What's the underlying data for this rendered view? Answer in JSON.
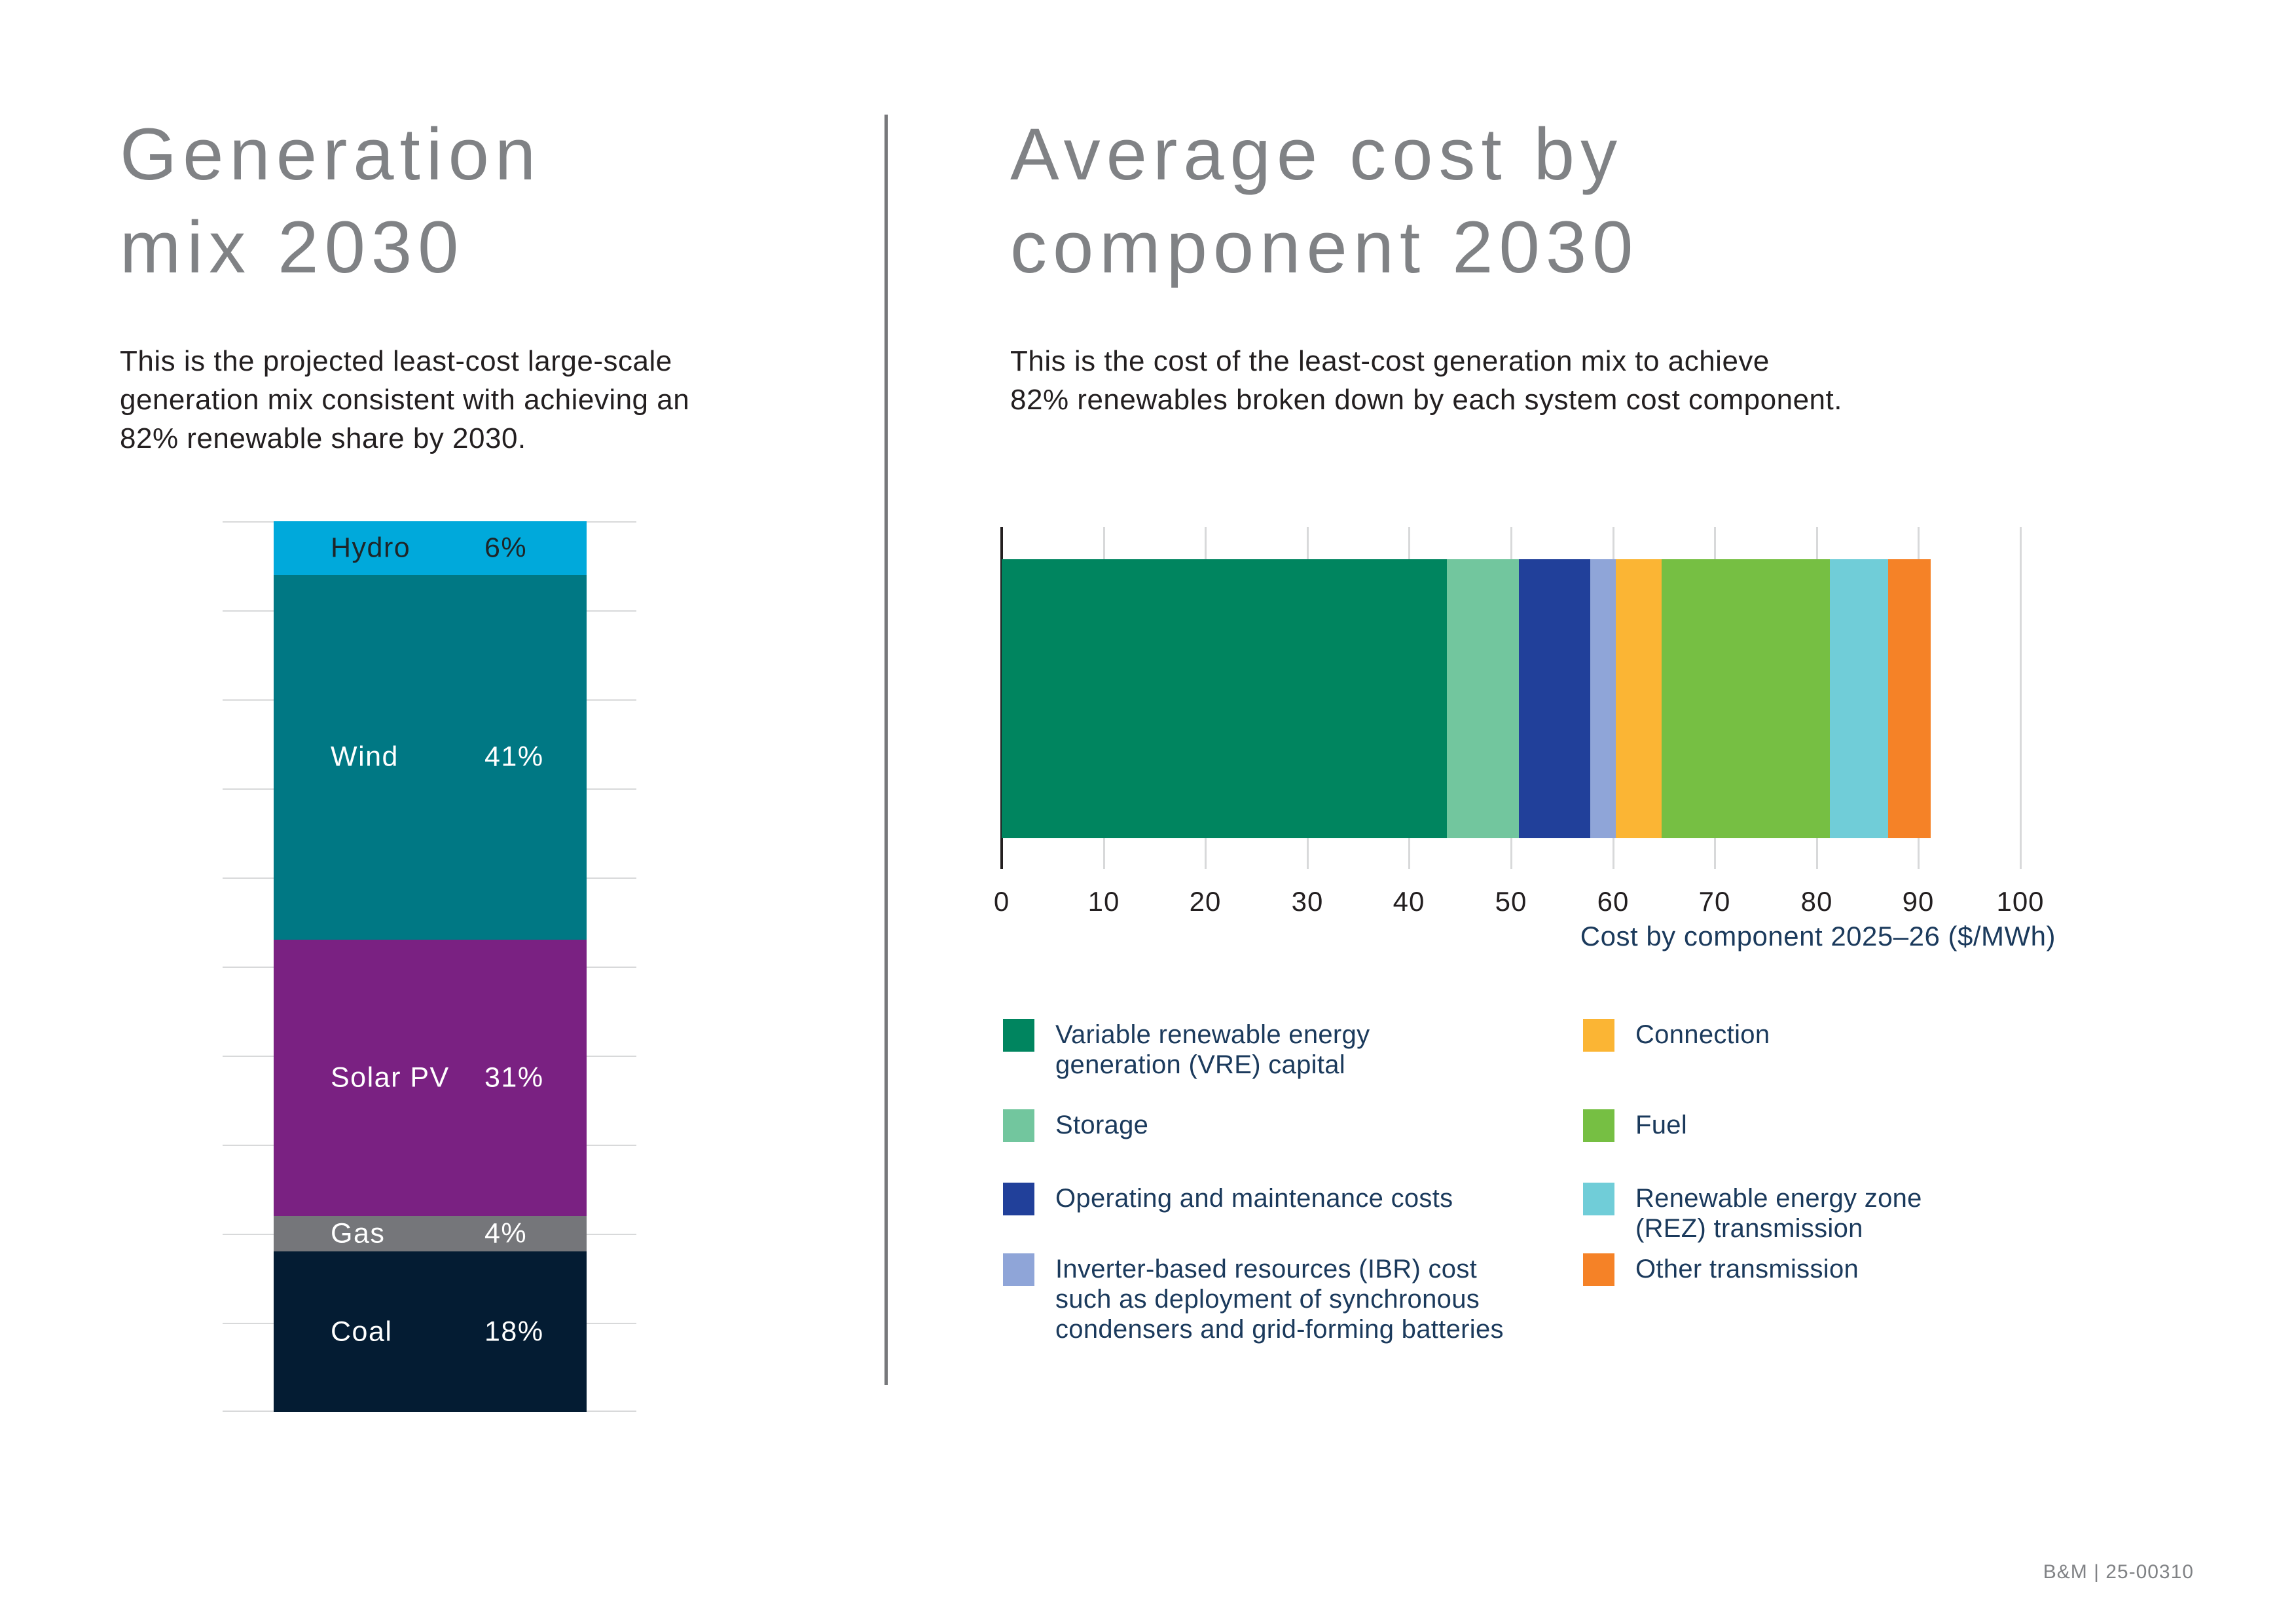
{
  "page": {
    "footer": "B&M | 25-00310"
  },
  "left_panel": {
    "title_line1": "Generation",
    "title_line2": "mix 2030",
    "subtitle_lines": [
      "This is the projected least-cost large-scale",
      "generation mix consistent with achieving an",
      "82% renewable share by 2030."
    ]
  },
  "right_panel": {
    "title_line1": "Average cost by",
    "title_line2": "component 2030",
    "subtitle_lines": [
      "This is the cost of the least-cost generation mix to achieve",
      "82% renewables broken down by each system cost component."
    ],
    "axis_title": "Cost by component 2025–26 ($/MWh)",
    "legend": {
      "row_tops": [
        1556,
        1694,
        1806,
        1914
      ],
      "columns": [
        {
          "x": 1532,
          "items": [
            {
              "swatch": "#00855F",
              "lines": [
                "Variable renewable energy",
                "generation (VRE) capital"
              ]
            },
            {
              "swatch": "#72C69E",
              "lines": [
                "Storage"
              ]
            },
            {
              "swatch": "#21409A",
              "lines": [
                "Operating and maintenance costs"
              ]
            },
            {
              "swatch": "#8FA5D8",
              "lines": [
                "Inverter-based resources (IBR) cost",
                "such as deployment of synchronous",
                "condensers and grid-forming batteries"
              ]
            }
          ]
        },
        {
          "x": 2418,
          "items": [
            {
              "swatch": "#FBB534",
              "lines": [
                "Connection"
              ]
            },
            {
              "swatch": "#76BF43",
              "lines": [
                "Fuel"
              ]
            },
            {
              "swatch": "#70CDD8",
              "lines": [
                "Renewable energy zone",
                "(REZ) transmission"
              ]
            },
            {
              "swatch": "#F58227",
              "lines": [
                "Other transmission"
              ]
            }
          ]
        }
      ]
    }
  },
  "chart_data": [
    {
      "id": "generation-mix-2030",
      "type": "bar",
      "subtype": "stacked-vertical-single-column",
      "title": "Generation mix 2030",
      "categories": [
        "Hydro",
        "Wind",
        "Solar PV",
        "Gas",
        "Coal"
      ],
      "values": [
        6,
        41,
        31,
        4,
        18
      ],
      "value_labels": [
        "6%",
        "41%",
        "31%",
        "4%",
        "18%"
      ],
      "unit": "%",
      "ylim": [
        0,
        100
      ],
      "gridline_step": 10,
      "grid": true,
      "colors": [
        "#00A9DB",
        "#007884",
        "#7A2182",
        "#75767A",
        "#041C33"
      ],
      "label_colors": [
        "#1E2528",
        "#FFFFFF",
        "#FFFFFF",
        "#FFFFFF",
        "#FFFFFF"
      ]
    },
    {
      "id": "average-cost-by-component-2030",
      "type": "bar",
      "subtype": "stacked-horizontal-single-row",
      "title": "Average cost by component 2030",
      "xlabel": "Cost by component 2025–26 ($/MWh)",
      "xlim": [
        0,
        100
      ],
      "xticks": [
        "0",
        "10",
        "20",
        "30",
        "40",
        "50",
        "60",
        "70",
        "80",
        "90",
        "100"
      ],
      "grid": true,
      "total_estimate": 91.2,
      "series": [
        {
          "name": "Variable renewable energy generation (VRE) capital",
          "value": 43.7,
          "color": "#00855F"
        },
        {
          "name": "Storage",
          "value": 7.1,
          "color": "#72C69E"
        },
        {
          "name": "Operating and maintenance costs",
          "value": 7.0,
          "color": "#21409A"
        },
        {
          "name": "Inverter-based resources (IBR) cost such as deployment of synchronous condensers and grid-forming batteries",
          "value": 2.5,
          "color": "#8FA5D8"
        },
        {
          "name": "Connection",
          "value": 4.5,
          "color": "#FBB534"
        },
        {
          "name": "Fuel",
          "value": 16.5,
          "color": "#76BF43"
        },
        {
          "name": "Renewable energy zone (REZ) transmission",
          "value": 5.7,
          "color": "#70CDD8"
        },
        {
          "name": "Other transmission",
          "value": 4.2,
          "color": "#F58227"
        }
      ]
    }
  ]
}
